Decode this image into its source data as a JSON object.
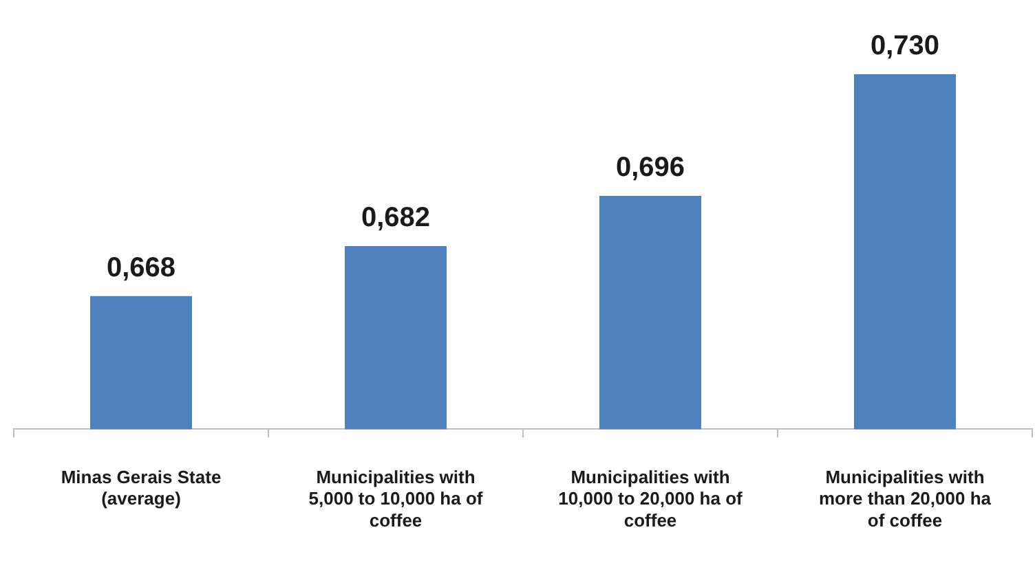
{
  "chart_data": {
    "type": "bar",
    "categories": [
      "Minas Gerais State (average)",
      "Municipalities with 5,000 to 10,000 ha of coffee",
      "Municipalities with 10,000 to 20,000 ha of coffee",
      "Municipalities with more than 20,000 ha of coffee"
    ],
    "values": [
      0.668,
      0.682,
      0.696,
      0.73
    ],
    "value_labels": [
      "0,668",
      "0,682",
      "0,696",
      "0,730"
    ],
    "color": "#4f81bd",
    "tick_labels": "x",
    "grid": false,
    "legend": false
  }
}
